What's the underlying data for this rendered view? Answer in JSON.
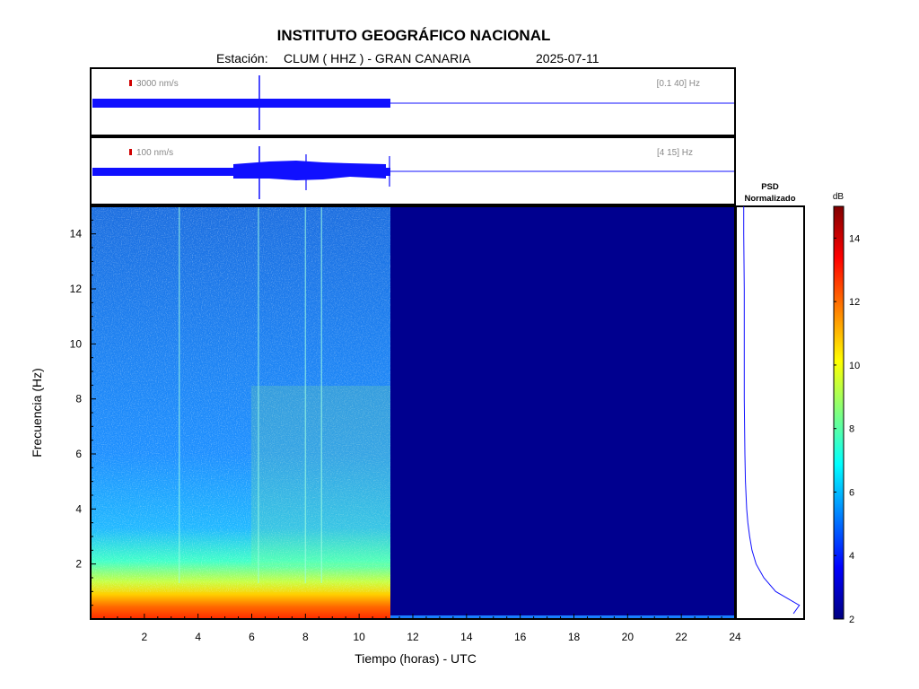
{
  "header": {
    "title": "INSTITUTO GEOGRÁFICO NACIONAL",
    "station_label": "Estación:",
    "station_value": "CLUM ( HHZ ) - GRAN CANARIA",
    "date": "2025-07-11"
  },
  "traces": [
    {
      "amp_label": "3000 nm/s",
      "band_label": "[0.1 40] Hz",
      "scale_color": "#d10000"
    },
    {
      "amp_label": "100 nm/s",
      "band_label": "[4 15] Hz",
      "scale_color": "#d10000"
    }
  ],
  "psd": {
    "label_line1": "PSD",
    "label_line2": "Normalizado"
  },
  "colorbar": {
    "unit": "dB",
    "range": [
      2,
      15
    ],
    "ticks": [
      "2",
      "4",
      "6",
      "8",
      "10",
      "12",
      "14"
    ],
    "colormap": "jet"
  },
  "chart_data": {
    "type": "heatmap",
    "title": "INSTITUTO GEOGRÁFICO NACIONAL",
    "xlabel": "Tiempo (horas) - UTC",
    "ylabel": "Frecuencia  (Hz)",
    "xlim": [
      0,
      24
    ],
    "ylim": [
      0,
      15
    ],
    "x_ticks": [
      "2",
      "4",
      "6",
      "8",
      "10",
      "12",
      "14",
      "16",
      "18",
      "20",
      "22",
      "24"
    ],
    "y_ticks": [
      "2",
      "4",
      "6",
      "8",
      "10",
      "12",
      "14"
    ],
    "data_end_hour": 11.1,
    "events_hours": [
      3.3,
      6.25,
      8.0,
      8.6
    ],
    "psd_profile": {
      "freq_hz": [
        0.2,
        0.5,
        1.0,
        1.5,
        2.0,
        2.5,
        3.0,
        3.5,
        4.0,
        5.0,
        6.0,
        8.0,
        10.0,
        12.0,
        14.0,
        15.0
      ],
      "value": [
        0.85,
        0.95,
        0.55,
        0.35,
        0.22,
        0.15,
        0.11,
        0.08,
        0.06,
        0.04,
        0.03,
        0.02,
        0.02,
        0.02,
        0.01,
        0.01
      ]
    }
  }
}
